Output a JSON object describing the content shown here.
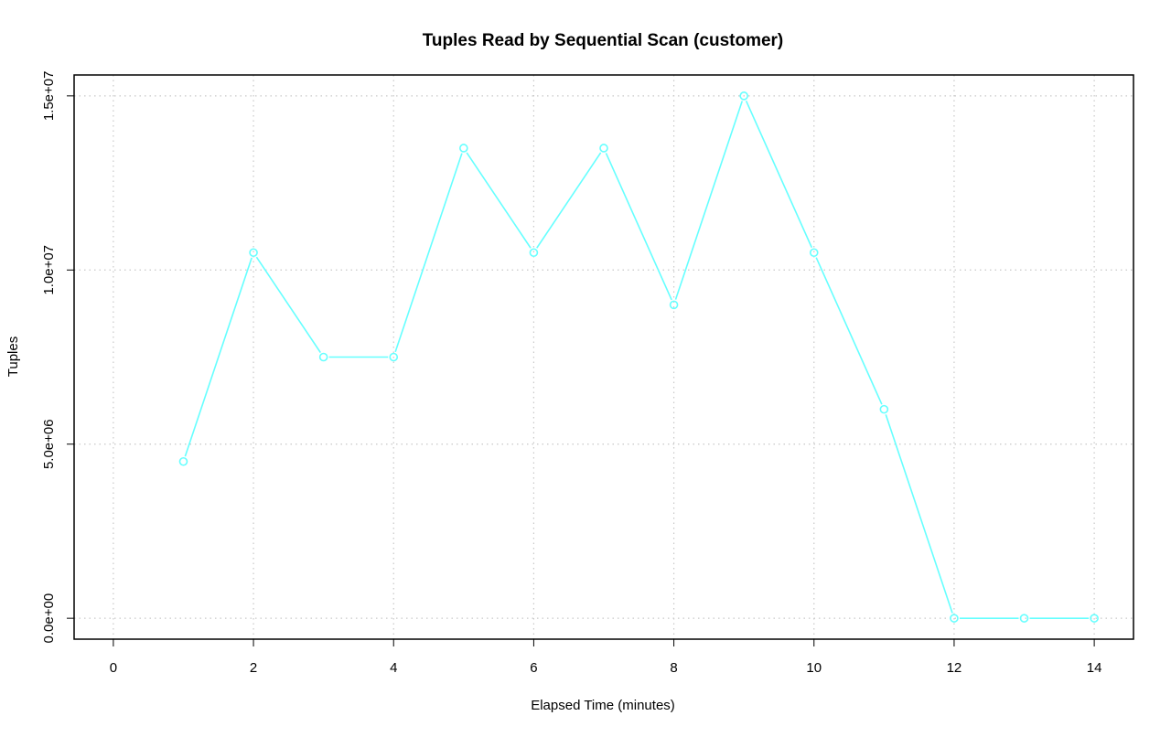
{
  "chart_data": {
    "type": "line",
    "title": "Tuples Read by Sequential Scan (customer)",
    "xlabel": "Elapsed Time (minutes)",
    "ylabel": "Tuples",
    "xlim": [
      -0.56,
      14.56
    ],
    "ylim": [
      -600000,
      15600000
    ],
    "x_ticks": [
      0,
      2,
      4,
      6,
      8,
      10,
      12,
      14
    ],
    "x_tick_labels": [
      "0",
      "2",
      "4",
      "6",
      "8",
      "10",
      "12",
      "14"
    ],
    "y_ticks": [
      0,
      5000000,
      10000000,
      15000000
    ],
    "y_tick_labels": [
      "0.0e+00",
      "5.0e+06",
      "1.0e+07",
      "1.5e+07"
    ],
    "grid": true,
    "grid_style": "dotted",
    "series": [
      {
        "color": "#66ffff",
        "marker": "open-circle",
        "x": [
          1,
          2,
          3,
          4,
          5,
          6,
          7,
          8,
          9,
          10,
          11,
          12,
          13,
          14
        ],
        "y": [
          4500000,
          10500000,
          7500000,
          7500000,
          13500000,
          10500000,
          13500000,
          9000000,
          15000000,
          10500000,
          6000000,
          0,
          0,
          0
        ]
      }
    ]
  }
}
